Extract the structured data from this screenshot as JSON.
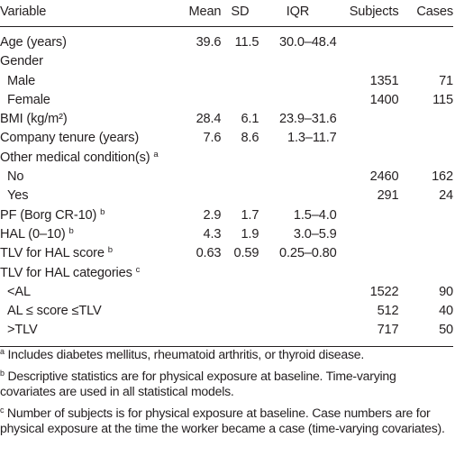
{
  "table": {
    "headers": {
      "variable": "Variable",
      "mean": "Mean",
      "sd": "SD",
      "iqr": "IQR",
      "subjects": "Subjects",
      "cases": "Cases"
    },
    "rows": [
      {
        "label": "Age (years)",
        "mean": "39.6",
        "sd": "11.5",
        "iqr": "30.0–48.4",
        "subjects": "",
        "cases": ""
      },
      {
        "label": "Gender",
        "mean": "",
        "sd": "",
        "iqr": "",
        "subjects": "",
        "cases": ""
      },
      {
        "label": "Male",
        "mean": "",
        "sd": "",
        "iqr": "",
        "subjects": "1351",
        "cases": "71"
      },
      {
        "label": "Female",
        "mean": "",
        "sd": "",
        "iqr": "",
        "subjects": "1400",
        "cases": "115"
      },
      {
        "label": "BMI (kg/m²)",
        "mean": "28.4",
        "sd": "6.1",
        "iqr": "23.9–31.6",
        "subjects": "",
        "cases": ""
      },
      {
        "label": "Company tenure (years)",
        "mean": "7.6",
        "sd": "8.6",
        "iqr": "1.3–11.7",
        "subjects": "",
        "cases": ""
      },
      {
        "label": "Other medical condition(s)",
        "mark": "a",
        "mean": "",
        "sd": "",
        "iqr": "",
        "subjects": "",
        "cases": ""
      },
      {
        "label": "No",
        "mean": "",
        "sd": "",
        "iqr": "",
        "subjects": "2460",
        "cases": "162"
      },
      {
        "label": "Yes",
        "mean": "",
        "sd": "",
        "iqr": "",
        "subjects": "291",
        "cases": "24"
      },
      {
        "label": "PF (Borg CR-10)",
        "mark": "b",
        "mean": "2.9",
        "sd": "1.7",
        "iqr": "1.5–4.0",
        "subjects": "",
        "cases": ""
      },
      {
        "label": "HAL (0–10)",
        "mark": "b",
        "mean": "4.3",
        "sd": "1.9",
        "iqr": "3.0–5.9",
        "subjects": "",
        "cases": ""
      },
      {
        "label": "TLV for HAL score",
        "mark": "b",
        "mean": "0.63",
        "sd": "0.59",
        "iqr": "0.25–0.80",
        "subjects": "",
        "cases": ""
      },
      {
        "label": "TLV for HAL categories",
        "mark": "c",
        "mean": "",
        "sd": "",
        "iqr": "",
        "subjects": "",
        "cases": ""
      },
      {
        "label": "<AL",
        "mean": "",
        "sd": "",
        "iqr": "",
        "subjects": "1522",
        "cases": "90"
      },
      {
        "label": "AL ≤ score ≤TLV",
        "mean": "",
        "sd": "",
        "iqr": "",
        "subjects": "512",
        "cases": "40"
      },
      {
        "label": ">TLV",
        "mean": "",
        "sd": "",
        "iqr": "",
        "subjects": "717",
        "cases": "50"
      }
    ]
  },
  "footnotes": [
    {
      "mark": "a",
      "text": "Includes diabetes mellitus, rheumatoid arthritis, or thyroid disease."
    },
    {
      "mark": "b",
      "text": "Descriptive statistics are for physical exposure at baseline. Time-varying covariates are used in all statistical models."
    },
    {
      "mark": "c",
      "text": "Number of subjects is for physical exposure at baseline. Case numbers are for physical exposure at the time the worker became a case (time-varying covariates)."
    }
  ]
}
